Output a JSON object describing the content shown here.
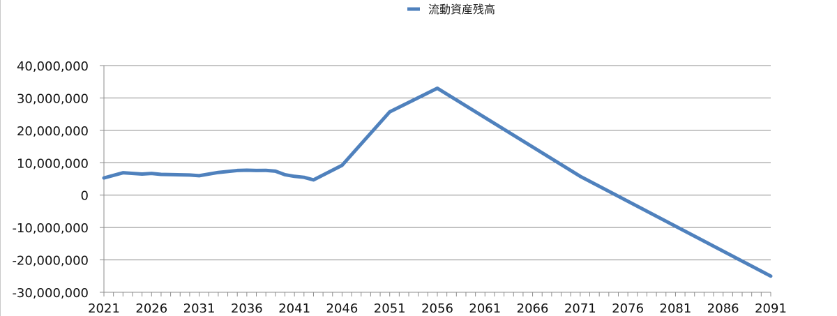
{
  "chart_data": {
    "type": "line",
    "series": [
      {
        "name": "流動資産残高",
        "color": "#4f81bd",
        "points": [
          [
            2021,
            5300000
          ],
          [
            2023,
            6900000
          ],
          [
            2025,
            6500000
          ],
          [
            2026,
            6700000
          ],
          [
            2027,
            6400000
          ],
          [
            2030,
            6200000
          ],
          [
            2031,
            6000000
          ],
          [
            2033,
            7000000
          ],
          [
            2035,
            7600000
          ],
          [
            2036,
            7700000
          ],
          [
            2037,
            7600000
          ],
          [
            2038,
            7650000
          ],
          [
            2039,
            7400000
          ],
          [
            2040,
            6300000
          ],
          [
            2041,
            5800000
          ],
          [
            2042,
            5500000
          ],
          [
            2043,
            4700000
          ],
          [
            2046,
            9200000
          ],
          [
            2051,
            25700000
          ],
          [
            2056,
            33000000
          ],
          [
            2071,
            5800000
          ],
          [
            2091,
            -25000000
          ]
        ]
      }
    ],
    "x_ticks": [
      "2021",
      "2026",
      "2031",
      "2036",
      "2041",
      "2046",
      "2051",
      "2056",
      "2061",
      "2066",
      "2071",
      "2076",
      "2081",
      "2086",
      "2091"
    ],
    "y_ticks": [
      "40,000,000",
      "30,000,000",
      "20,000,000",
      "10,000,000",
      "0",
      "-10,000,000",
      "-20,000,000",
      "-30,000,000"
    ],
    "ylim": [
      -30000000,
      40000000
    ],
    "xlim": [
      2021,
      2091
    ],
    "grid": true,
    "legend_position": "top-center",
    "title": "",
    "xlabel": "",
    "ylabel": ""
  }
}
